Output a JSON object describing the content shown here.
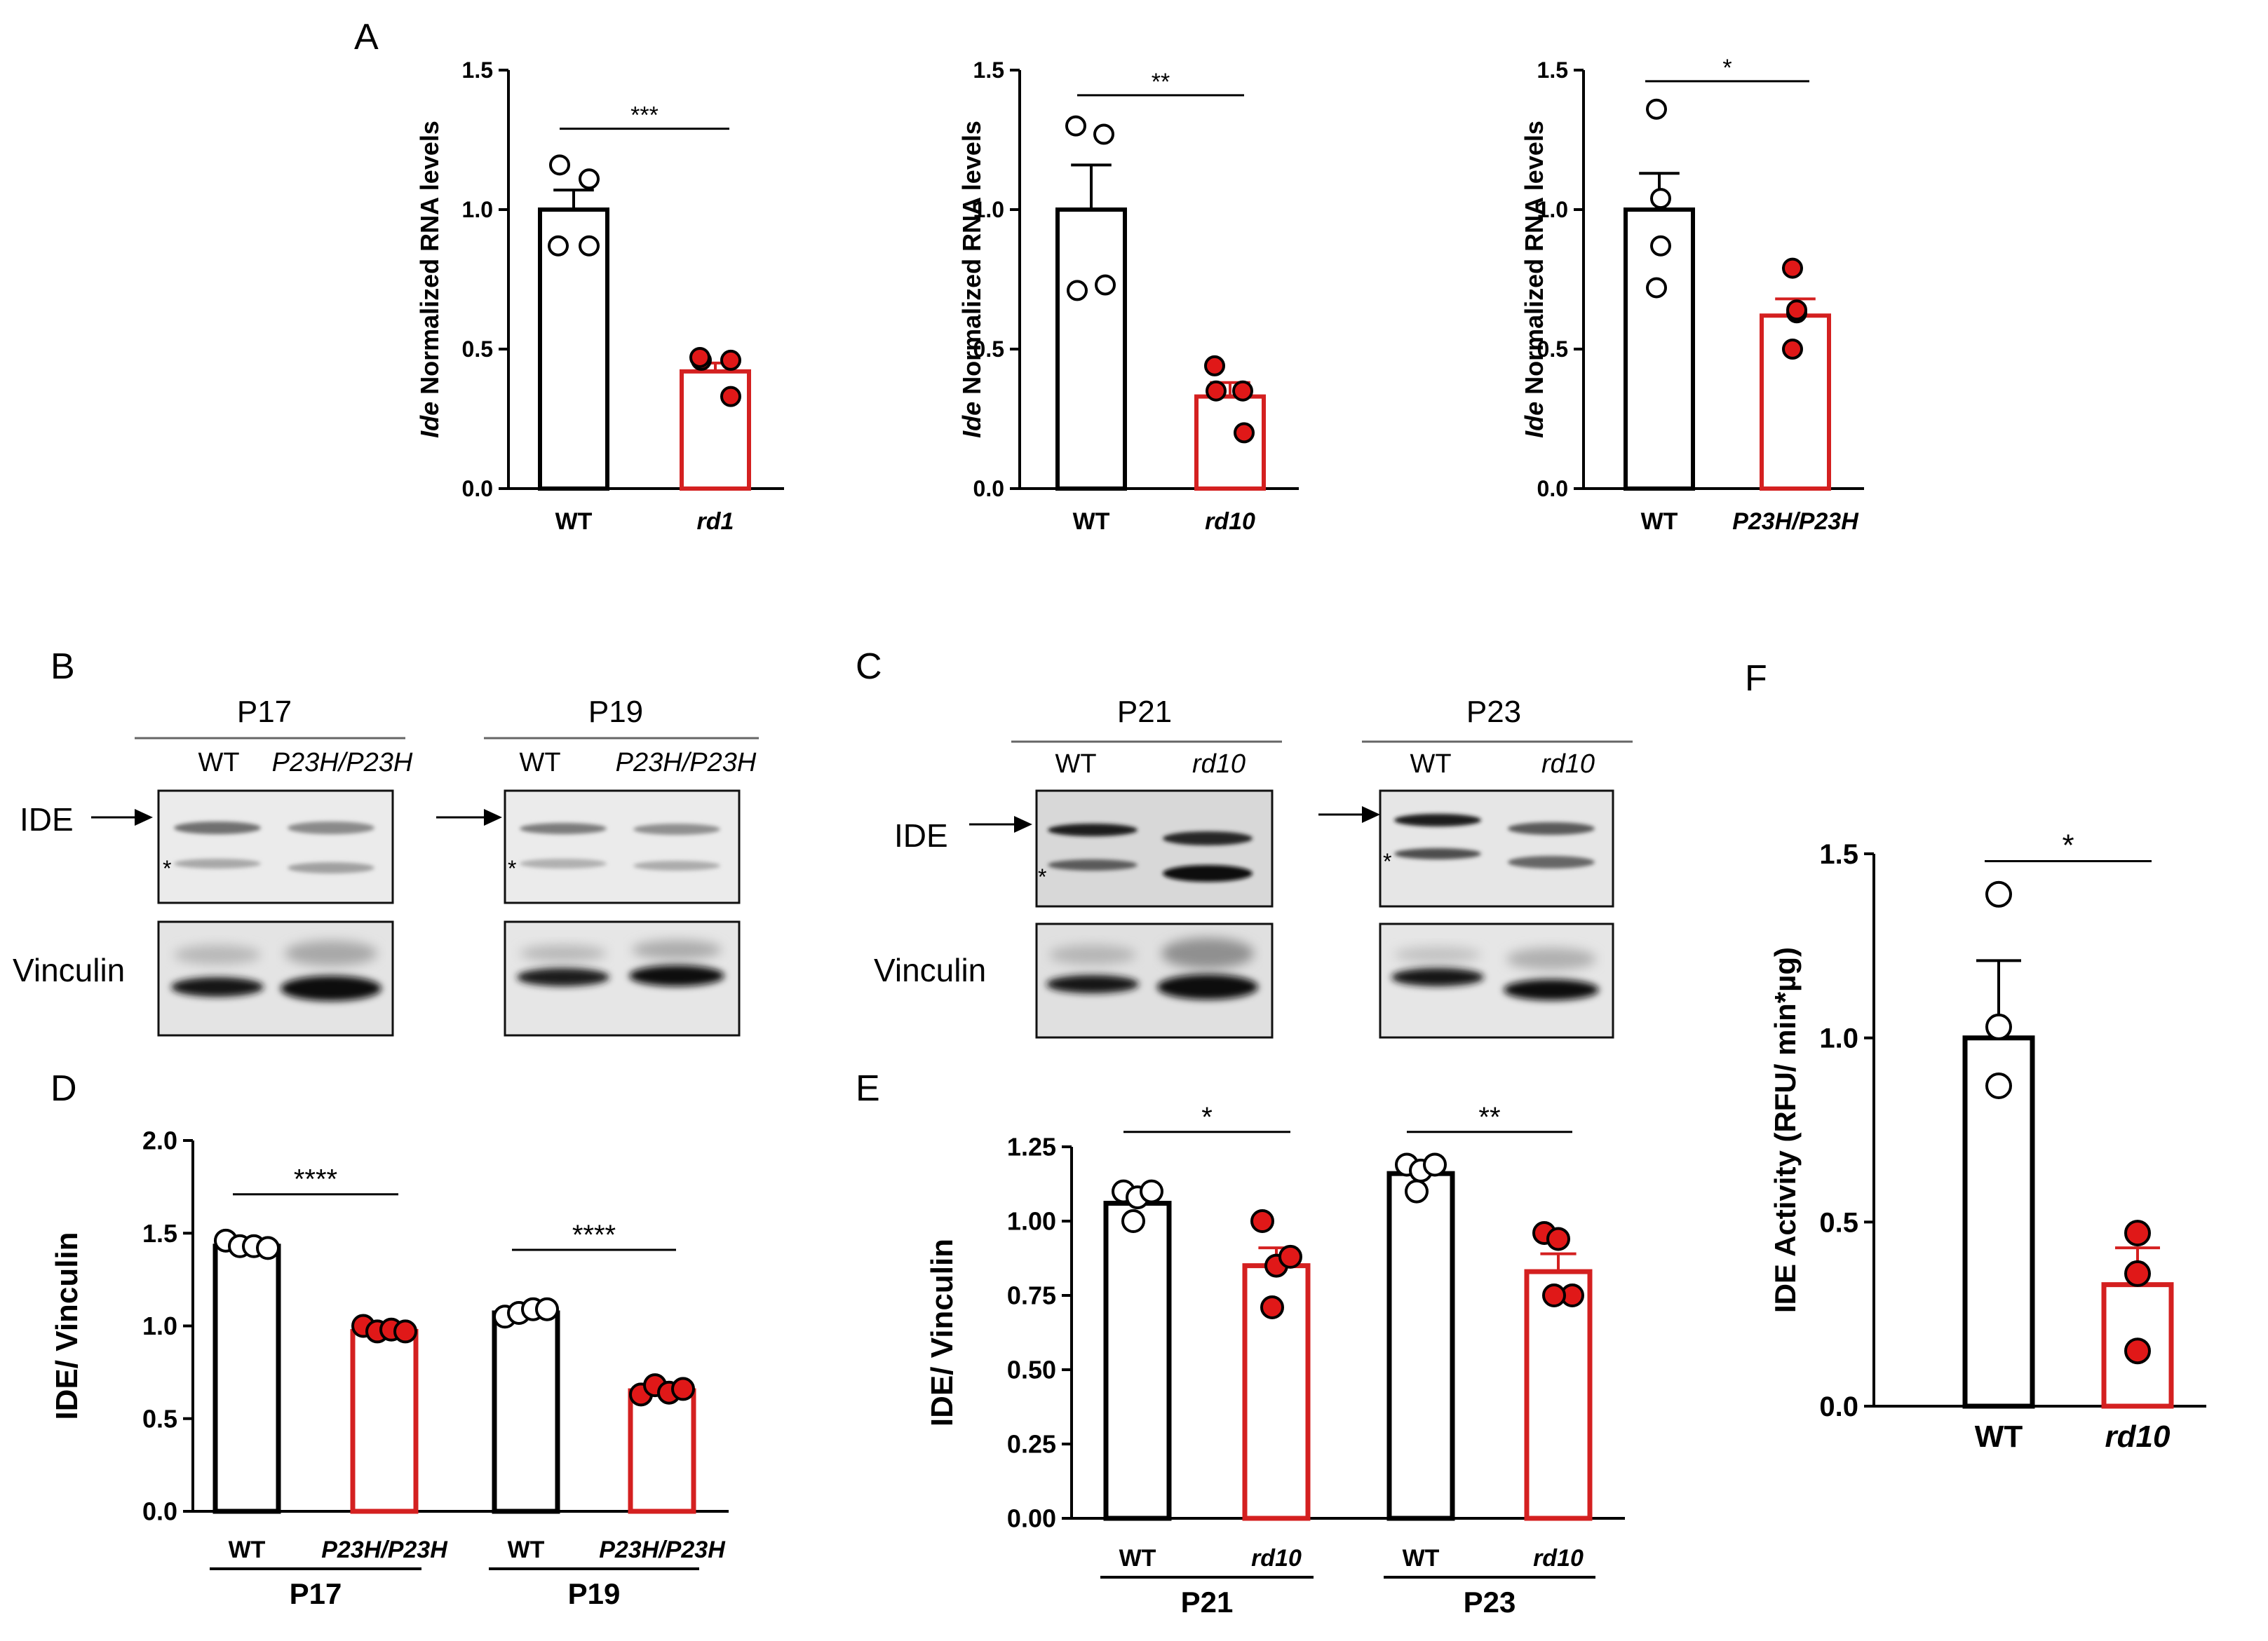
{
  "figure": {
    "panel_labels": {
      "A": "A",
      "B": "B",
      "C": "C",
      "D": "D",
      "E": "E",
      "F": "F"
    },
    "colors": {
      "wt": "#000000",
      "mutant": "#d42020",
      "mutant_fill": "#e01818",
      "wt_fill": "#ffffff"
    }
  },
  "chart_data": [
    {
      "id": "A1",
      "type": "bar",
      "ylabel_italic": "Ide",
      "ylabel_rest": " Normalized RNA levels",
      "ylim": [
        0,
        1.5
      ],
      "yticks": [
        "0.0",
        "0.5",
        "1.0",
        "1.5"
      ],
      "ytick_values": [
        0,
        0.5,
        1.0,
        1.5
      ],
      "groups": [
        {
          "label": "WT",
          "italic": false,
          "mean": 1.0,
          "sem": 0.07,
          "points": [
            1.16,
            1.11,
            0.87,
            0.87
          ],
          "color": "wt"
        },
        {
          "label": "rd1",
          "italic": true,
          "mean": 0.42,
          "sem": 0.03,
          "points": [
            0.46,
            0.46,
            0.47,
            0.33
          ],
          "color": "mutant"
        }
      ],
      "significance": [
        {
          "text": "***",
          "from": 0,
          "to": 1,
          "y": 1.29
        }
      ]
    },
    {
      "id": "A2",
      "type": "bar",
      "ylabel_italic": "Ide",
      "ylabel_rest": " Normalized RNA levels",
      "ylim": [
        0,
        1.5
      ],
      "yticks": [
        "0.0",
        "0.5",
        "1.0",
        "1.5"
      ],
      "ytick_values": [
        0,
        0.5,
        1.0,
        1.5
      ],
      "groups": [
        {
          "label": "WT",
          "italic": false,
          "mean": 1.0,
          "sem": 0.16,
          "points": [
            1.3,
            1.27,
            0.71,
            0.73
          ],
          "color": "wt"
        },
        {
          "label": "rd10",
          "italic": true,
          "mean": 0.33,
          "sem": 0.05,
          "points": [
            0.44,
            0.35,
            0.35,
            0.2
          ],
          "color": "mutant"
        }
      ],
      "significance": [
        {
          "text": "**",
          "from": 0,
          "to": 1,
          "y": 1.41
        }
      ]
    },
    {
      "id": "A3",
      "type": "bar",
      "ylabel_italic": "Ide",
      "ylabel_rest": " Normalized RNA levels",
      "ylim": [
        0,
        1.5
      ],
      "yticks": [
        "0.0",
        "0.5",
        "1.0",
        "1.5"
      ],
      "ytick_values": [
        0,
        0.5,
        1.0,
        1.5
      ],
      "groups": [
        {
          "label": "WT",
          "italic": false,
          "mean": 1.0,
          "sem": 0.13,
          "points": [
            1.36,
            1.04,
            0.87,
            0.72
          ],
          "color": "wt"
        },
        {
          "label": "P23H/P23H",
          "italic": true,
          "mean": 0.62,
          "sem": 0.06,
          "points": [
            0.79,
            0.63,
            0.64,
            0.5
          ],
          "color": "mutant"
        }
      ],
      "significance": [
        {
          "text": "*",
          "from": 0,
          "to": 1,
          "y": 1.46
        }
      ]
    },
    {
      "id": "D",
      "type": "bar",
      "ylabel": "IDE/ Vinculin",
      "ylim": [
        0,
        2.0
      ],
      "yticks": [
        "0.0",
        "0.5",
        "1.0",
        "1.5",
        "2.0"
      ],
      "ytick_values": [
        0,
        0.5,
        1.0,
        1.5,
        2.0
      ],
      "groups": [
        {
          "label": "WT",
          "italic": false,
          "mean": 1.43,
          "sem": 0.02,
          "points": [
            1.46,
            1.43,
            1.43,
            1.42
          ],
          "color": "wt"
        },
        {
          "label": "P23H/P23H",
          "italic": true,
          "mean": 0.97,
          "sem": 0.02,
          "points": [
            1.0,
            0.97,
            0.98,
            0.97
          ],
          "color": "mutant"
        },
        {
          "label": "WT",
          "italic": false,
          "mean": 1.07,
          "sem": 0.02,
          "points": [
            1.05,
            1.07,
            1.09,
            1.09
          ],
          "color": "wt"
        },
        {
          "label": "P23H/P23H",
          "italic": true,
          "mean": 0.65,
          "sem": 0.02,
          "points": [
            0.63,
            0.68,
            0.64,
            0.66
          ],
          "color": "mutant"
        }
      ],
      "group_labels": [
        {
          "text": "P17",
          "from": 0,
          "to": 1
        },
        {
          "text": "P19",
          "from": 2,
          "to": 3
        }
      ],
      "significance": [
        {
          "text": "****",
          "from": 0,
          "to": 1,
          "y": 1.71
        },
        {
          "text": "****",
          "from": 2,
          "to": 3,
          "y": 1.41
        }
      ]
    },
    {
      "id": "E",
      "type": "bar",
      "ylabel": "IDE/ Vinculin",
      "ylim": [
        0,
        1.25
      ],
      "yticks": [
        "0.00",
        "0.25",
        "0.50",
        "0.75",
        "1.00",
        "1.25"
      ],
      "ytick_values": [
        0,
        0.25,
        0.5,
        0.75,
        1.0,
        1.25
      ],
      "groups": [
        {
          "label": "WT",
          "italic": false,
          "mean": 1.06,
          "sem": 0.03,
          "points": [
            1.1,
            1.08,
            1.1,
            1.0
          ],
          "color": "wt"
        },
        {
          "label": "rd10",
          "italic": true,
          "mean": 0.85,
          "sem": 0.06,
          "points": [
            1.0,
            0.85,
            0.88,
            0.71
          ],
          "color": "mutant"
        },
        {
          "label": "WT",
          "italic": false,
          "mean": 1.16,
          "sem": 0.03,
          "points": [
            1.19,
            1.17,
            1.19,
            1.1
          ],
          "color": "wt"
        },
        {
          "label": "rd10",
          "italic": true,
          "mean": 0.83,
          "sem": 0.06,
          "points": [
            0.96,
            0.94,
            0.75,
            0.75
          ],
          "color": "mutant"
        }
      ],
      "group_labels": [
        {
          "text": "P21",
          "from": 0,
          "to": 1
        },
        {
          "text": "P23",
          "from": 2,
          "to": 3
        }
      ],
      "significance": [
        {
          "text": "*",
          "from": 0,
          "to": 1,
          "y": 1.3
        },
        {
          "text": "**",
          "from": 2,
          "to": 3,
          "y": 1.3
        }
      ]
    },
    {
      "id": "F",
      "type": "bar",
      "ylabel": "IDE Activity (RFU/ min*µg)",
      "ylim": [
        0,
        1.5
      ],
      "yticks": [
        "0.0",
        "0.5",
        "1.0",
        "1.5"
      ],
      "ytick_values": [
        0,
        0.5,
        1.0,
        1.5
      ],
      "groups": [
        {
          "label": "WT",
          "italic": false,
          "mean": 1.0,
          "sem": 0.21,
          "points": [
            1.39,
            1.03,
            0.87
          ],
          "color": "wt"
        },
        {
          "label": "rd10",
          "italic": true,
          "mean": 0.33,
          "sem": 0.1,
          "points": [
            0.47,
            0.36,
            0.15
          ],
          "color": "mutant"
        }
      ],
      "significance": [
        {
          "text": "*",
          "from": 0,
          "to": 1,
          "y": 1.48
        }
      ]
    }
  ],
  "blots": {
    "B": {
      "label": "IDE",
      "loading_label": "Vinculin",
      "asterisk": "*",
      "sets": [
        {
          "title": "P17",
          "lanes": [
            "WT",
            "P23H/P23H"
          ]
        },
        {
          "title": "P19",
          "lanes": [
            "WT",
            "P23H/P23H"
          ]
        }
      ]
    },
    "C": {
      "label": "IDE",
      "loading_label": "Vinculin",
      "asterisk": "*",
      "sets": [
        {
          "title": "P21",
          "lanes": [
            "WT",
            "rd10"
          ]
        },
        {
          "title": "P23",
          "lanes": [
            "WT",
            "rd10"
          ]
        }
      ]
    }
  }
}
